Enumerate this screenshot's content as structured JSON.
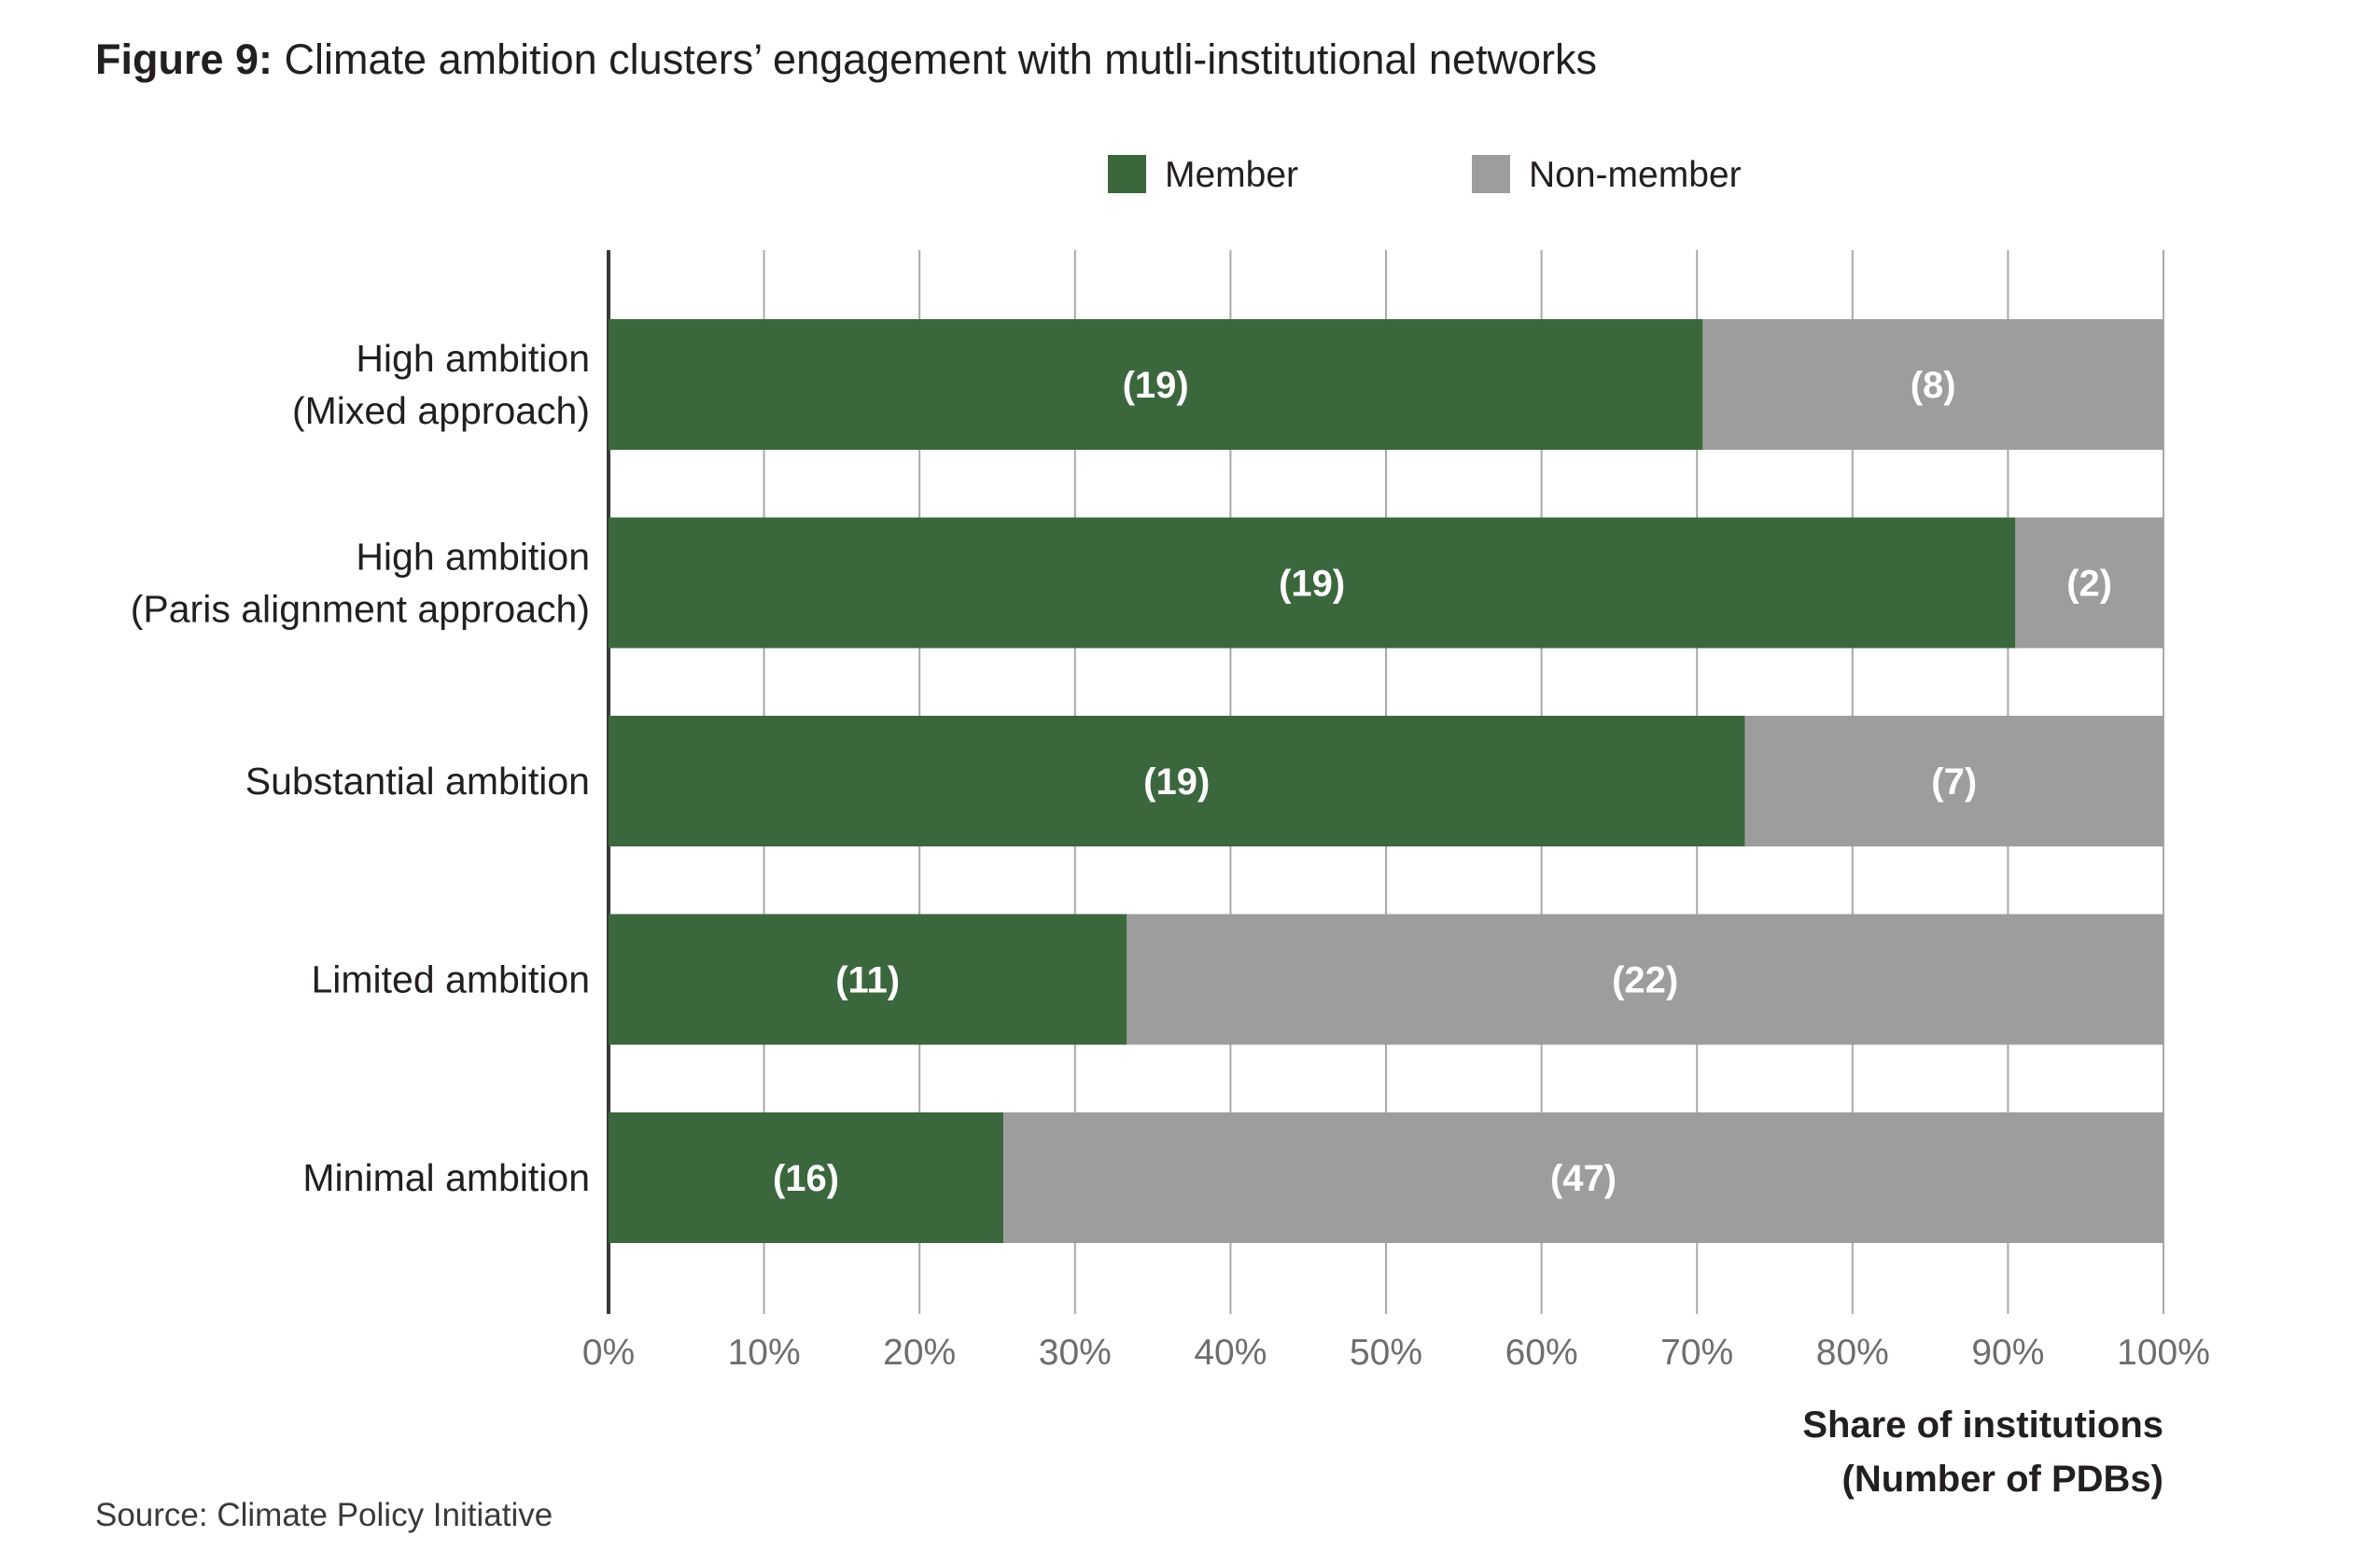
{
  "figure": {
    "title_prefix": "Figure 9:",
    "title_text": "Climate ambition clusters’ engagement with mutli-institutional networks",
    "source": "Source: Climate Policy Initiative"
  },
  "chart_data": {
    "type": "bar",
    "orientation": "horizontal",
    "stacked": true,
    "normalized": true,
    "categories": [
      [
        "High ambition",
        "(Mixed approach)"
      ],
      [
        "High ambition",
        "(Paris alignment approach)"
      ],
      [
        "Substantial ambition"
      ],
      [
        "Limited ambition"
      ],
      [
        "Minimal ambition"
      ]
    ],
    "series": [
      {
        "name": "Member",
        "color": "#3b673d",
        "values": [
          19,
          19,
          19,
          11,
          16
        ]
      },
      {
        "name": "Non-member",
        "color": "#9e9d9d",
        "values": [
          8,
          2,
          7,
          22,
          47
        ]
      }
    ],
    "data_labels": [
      [
        "(19)",
        "(19)",
        "(19)",
        "(11)",
        "(16)"
      ],
      [
        "(8)",
        "(2)",
        "(7)",
        "(22)",
        "(47)"
      ]
    ],
    "xticks": [
      "0%",
      "10%",
      "20%",
      "30%",
      "40%",
      "50%",
      "60%",
      "70%",
      "80%",
      "90%",
      "100%"
    ],
    "xlim": [
      0,
      100
    ],
    "xlabel": [
      "Share of institutions",
      "(Number of PDBs)"
    ],
    "grid": "vertical",
    "legend_position": "top"
  }
}
